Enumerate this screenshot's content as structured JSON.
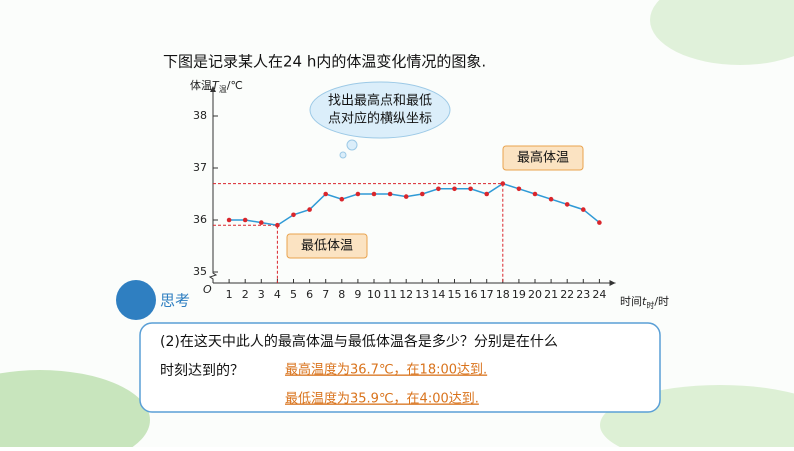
{
  "slide": {
    "intro": "下图是记录某人在24 h内的体温变化情况的图象.",
    "bubble": [
      "找出最高点和最低",
      "点对应的横纵坐标"
    ],
    "callout_max": "最高体温",
    "callout_min": "最低体温",
    "think": "思考",
    "question": [
      "(2)在这天中此人的最高体温与最低体温各是多少？分别是在什么",
      "时刻达到的？"
    ],
    "answers": [
      "最高温度为36.7℃，在18:00达到.",
      "最低温度为35.9℃，在4:00达到."
    ]
  },
  "chart_data": {
    "type": "line",
    "ylabel": {
      "main": "体温",
      "var": "T",
      "sub": "温",
      "unit": "/℃"
    },
    "xlabel": {
      "main": "时间",
      "var": "t",
      "sub": "时",
      "unit": "/时"
    },
    "origin": "O",
    "x": [
      1,
      2,
      3,
      4,
      5,
      6,
      7,
      8,
      9,
      10,
      11,
      12,
      13,
      14,
      15,
      16,
      17,
      18,
      19,
      20,
      21,
      22,
      23,
      24
    ],
    "values": [
      36.0,
      36.0,
      35.95,
      35.9,
      36.1,
      36.2,
      36.5,
      36.4,
      36.5,
      36.5,
      36.5,
      36.45,
      36.5,
      36.6,
      36.6,
      36.6,
      36.5,
      36.7,
      36.6,
      36.5,
      36.4,
      36.3,
      36.2,
      35.95
    ],
    "line_color": "#2f9ad6",
    "marker_color": "#d9262c",
    "xlim": [
      0,
      25
    ],
    "ylim": [
      35,
      38.5
    ],
    "xticks": [
      1,
      2,
      3,
      4,
      5,
      6,
      7,
      8,
      9,
      10,
      11,
      12,
      13,
      14,
      15,
      16,
      17,
      18,
      19,
      20,
      21,
      22,
      23,
      24
    ],
    "yticks": [
      35,
      36,
      37,
      38
    ],
    "max_index": 17,
    "min_index": 3
  }
}
